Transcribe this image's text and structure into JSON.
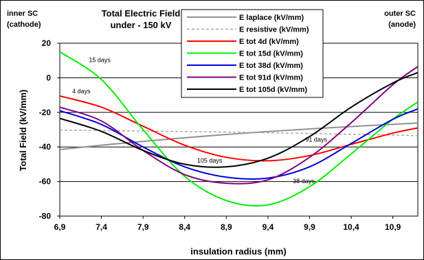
{
  "chart_data": {
    "type": "line",
    "title": "Total Electric Field",
    "subtitle": "under - 150 kV",
    "xlabel": "insulation radius (mm)",
    "ylabel": "Total Field (kV/mm)",
    "xlim": [
      6.9,
      11.2
    ],
    "ylim": [
      -80,
      20
    ],
    "xticks": [
      "6,9",
      "7,4",
      "7,9",
      "8,4",
      "8,9",
      "9,4",
      "9,9",
      "10,4",
      "10,9"
    ],
    "xtick_values": [
      6.9,
      7.4,
      7.9,
      8.4,
      8.9,
      9.4,
      9.9,
      10.4,
      10.9
    ],
    "yticks": [
      "20",
      "0",
      "-20",
      "-40",
      "-60",
      "-80"
    ],
    "ytick_values": [
      20,
      0,
      -20,
      -40,
      -60,
      -80
    ],
    "grid": "horizontal",
    "legend_position": "top-center",
    "corner_left": [
      "inner SC",
      "(cathode)"
    ],
    "corner_right": [
      "outer SC",
      "(anode)"
    ],
    "series": [
      {
        "name": "E laplace (kV/mm)",
        "color": "#909090",
        "dash": "solid",
        "x": [
          6.9,
          7.4,
          7.9,
          8.4,
          8.9,
          9.4,
          9.9,
          10.4,
          10.9,
          11.2
        ],
        "y": [
          -41.5,
          -39.0,
          -36.8,
          -34.7,
          -32.8,
          -31.1,
          -29.6,
          -28.2,
          -26.9,
          -26.2
        ]
      },
      {
        "name": "E resistive (kV/mm)",
        "color": "#a8a8a8",
        "dash": "dashed",
        "x": [
          6.9,
          7.4,
          7.9,
          8.4,
          8.9,
          9.4,
          9.9,
          10.4,
          10.9,
          11.2
        ],
        "y": [
          -30.2,
          -30.5,
          -30.8,
          -31.1,
          -31.4,
          -31.8,
          -32.2,
          -32.7,
          -33.1,
          -33.5
        ]
      },
      {
        "name": "E tot 4d (kV/mm)",
        "color": "#ff0000",
        "dash": "solid",
        "x": [
          6.9,
          7.4,
          7.9,
          8.4,
          8.9,
          9.4,
          9.9,
          10.4,
          10.9,
          11.2
        ],
        "y": [
          -10.5,
          -17.0,
          -28.0,
          -39.0,
          -46.0,
          -48.0,
          -45.0,
          -38.5,
          -32.0,
          -29.0
        ]
      },
      {
        "name": "E tot 15d (kV/mm)",
        "color": "#00ee00",
        "dash": "solid",
        "x": [
          6.9,
          7.4,
          7.9,
          8.4,
          8.9,
          9.4,
          9.9,
          10.4,
          10.9,
          11.2
        ],
        "y": [
          15.0,
          -1.0,
          -30.0,
          -57.0,
          -71.0,
          -73.5,
          -63.0,
          -44.0,
          -24.0,
          -14.0
        ]
      },
      {
        "name": "E tot 38d (kV/mm)",
        "color": "#0000dd",
        "dash": "solid",
        "x": [
          6.9,
          7.4,
          7.9,
          8.4,
          8.9,
          9.4,
          9.9,
          10.4,
          10.9,
          11.2
        ],
        "y": [
          -19.0,
          -27.0,
          -40.0,
          -51.5,
          -57.5,
          -58.0,
          -51.5,
          -38.0,
          -24.0,
          -18.0
        ]
      },
      {
        "name": "E tot 91d (kV/mm)",
        "color": "#800080",
        "dash": "solid",
        "x": [
          6.9,
          7.4,
          7.9,
          8.4,
          8.9,
          9.4,
          9.9,
          10.4,
          10.9,
          11.2
        ],
        "y": [
          -17.0,
          -25.0,
          -42.0,
          -56.0,
          -61.0,
          -59.0,
          -46.0,
          -26.0,
          -4.0,
          6.5
        ]
      },
      {
        "name": "E tot 105d (kV/mm)",
        "color": "#000000",
        "dash": "solid",
        "x": [
          6.9,
          7.4,
          7.9,
          8.4,
          8.9,
          9.4,
          9.9,
          10.4,
          10.9,
          11.2
        ],
        "y": [
          -23.5,
          -31.0,
          -42.0,
          -50.0,
          -51.5,
          -46.5,
          -34.0,
          -17.0,
          -3.0,
          3.0
        ]
      }
    ],
    "annotations": [
      {
        "text": "15 days",
        "x": 7.25,
        "y": 9
      },
      {
        "text": "4 days",
        "x": 7.05,
        "y": -9
      },
      {
        "text": "91 days",
        "x": 9.85,
        "y": -37
      },
      {
        "text": "105 days",
        "x": 8.55,
        "y": -49
      },
      {
        "text": "38 days",
        "x": 9.7,
        "y": -61
      }
    ]
  }
}
